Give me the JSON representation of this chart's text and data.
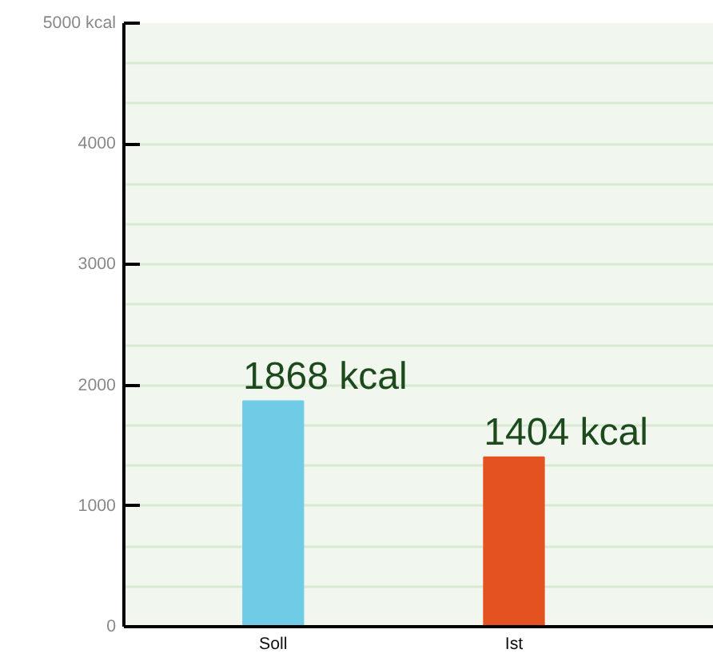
{
  "chart_data": {
    "type": "bar",
    "categories": [
      "Soll",
      "Ist"
    ],
    "values": [
      1868,
      1404
    ],
    "colors": [
      "#70cbe6",
      "#e4531f"
    ],
    "value_labels": [
      "1868 kcal",
      "1404 kcal"
    ],
    "ylim": [
      0,
      5000
    ],
    "yticks": [
      0,
      {
        "value": 333,
        "label": null
      },
      {
        "value": 667,
        "label": null
      },
      1000,
      {
        "value": 1333,
        "label": null
      },
      {
        "value": 1667,
        "label": null
      },
      2000,
      {
        "value": 2333,
        "label": null
      },
      {
        "value": 2667,
        "label": null
      },
      3000,
      {
        "value": 3333,
        "label": null
      },
      {
        "value": 3667,
        "label": null
      },
      4000,
      {
        "value": 4333,
        "label": null
      },
      {
        "value": 4667,
        "label": null
      },
      {
        "value": 5000,
        "label": "5000 kcal"
      }
    ],
    "grid": "y"
  }
}
